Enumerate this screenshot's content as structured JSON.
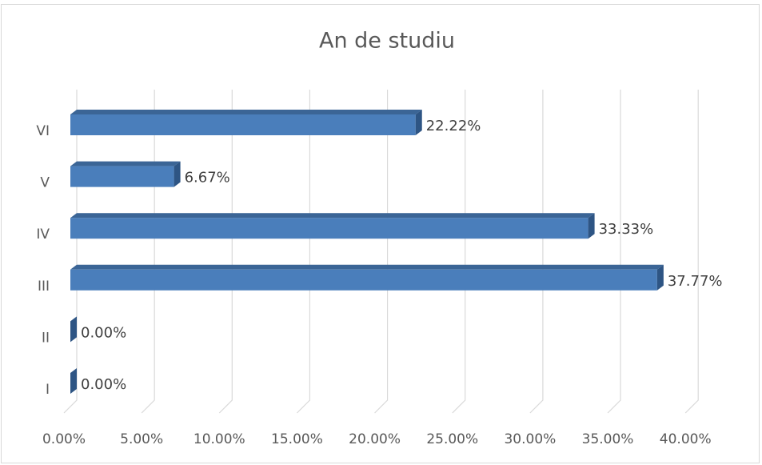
{
  "chart_data": {
    "type": "bar",
    "orientation": "horizontal",
    "title": "An de studiu",
    "categories": [
      "I",
      "II",
      "III",
      "IV",
      "V",
      "VI"
    ],
    "values": [
      0,
      0,
      37.77,
      33.33,
      6.67,
      22.22
    ],
    "value_labels": [
      "0.00%",
      "0.00%",
      "37.77%",
      "33.33%",
      "6.67%",
      "22.22%"
    ],
    "color": "#4a7ebb",
    "xlim": [
      0,
      40
    ],
    "xticks": [
      {
        "value": 0,
        "label": "0.00%"
      },
      {
        "value": 5,
        "label": "5.00%"
      },
      {
        "value": 10,
        "label": "10.00%"
      },
      {
        "value": 15,
        "label": "15.00%"
      },
      {
        "value": 20,
        "label": "20.00%"
      },
      {
        "value": 25,
        "label": "25.00%"
      },
      {
        "value": 30,
        "label": "30.00%"
      },
      {
        "value": 35,
        "label": "35.00%"
      },
      {
        "value": 40,
        "label": "40.00%"
      }
    ],
    "grid": true
  }
}
